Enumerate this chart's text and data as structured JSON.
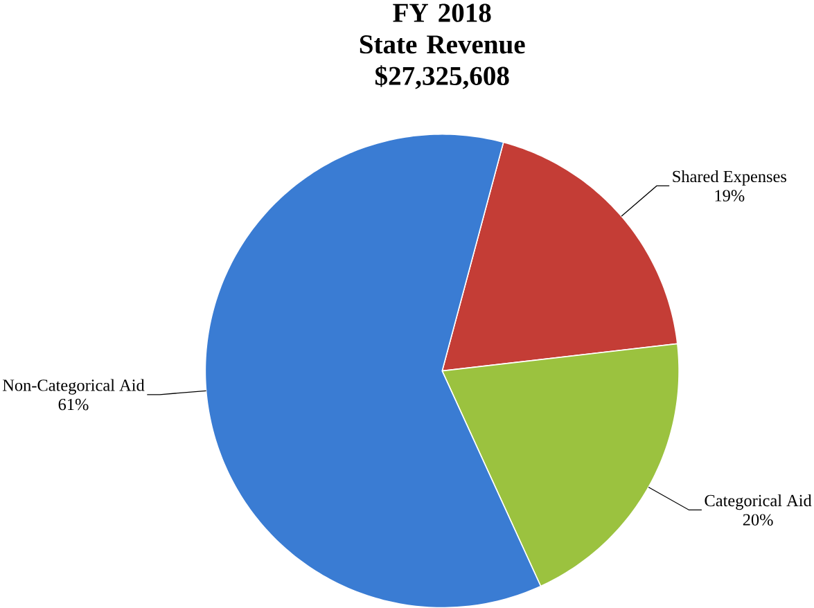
{
  "chart_data": {
    "type": "pie",
    "title": "FY 2018",
    "subtitle": "State Revenue $27,325,608",
    "categories": [
      "Shared Expenses",
      "Categorical Aid",
      "Non-Categorical Aid"
    ],
    "values": [
      19,
      20,
      61
    ],
    "value_labels": [
      "19%",
      "20%",
      "61%"
    ],
    "colors": [
      "#c43d36",
      "#9bc23f",
      "#3a7cd3"
    ]
  }
}
